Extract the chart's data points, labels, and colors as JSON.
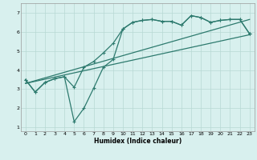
{
  "xlabel": "Humidex (Indice chaleur)",
  "line_color": "#2d7a6e",
  "bg_color": "#d8f0ee",
  "grid_color": "#b8d8d4",
  "xlim": [
    -0.5,
    23.5
  ],
  "ylim": [
    0.8,
    7.5
  ],
  "xticks": [
    0,
    1,
    2,
    3,
    4,
    5,
    6,
    7,
    8,
    9,
    10,
    11,
    12,
    13,
    14,
    15,
    16,
    17,
    18,
    19,
    20,
    21,
    22,
    23
  ],
  "yticks": [
    1,
    2,
    3,
    4,
    5,
    6,
    7
  ],
  "line1_x": [
    0,
    1,
    2,
    3,
    4,
    5,
    6,
    7,
    8,
    9,
    10,
    11,
    12,
    13,
    14,
    15,
    16,
    17,
    18,
    19,
    20,
    21,
    22,
    23
  ],
  "line1_y": [
    3.5,
    2.85,
    3.35,
    3.55,
    3.65,
    3.1,
    4.15,
    4.45,
    4.9,
    5.4,
    6.15,
    6.5,
    6.6,
    6.65,
    6.55,
    6.55,
    6.35,
    6.85,
    6.75,
    6.5,
    6.6,
    6.65,
    6.65,
    5.9
  ],
  "line2_x": [
    0,
    1,
    2,
    3,
    4,
    5,
    6,
    7,
    8,
    9,
    10,
    11,
    12,
    13,
    14,
    15,
    16,
    17,
    18,
    19,
    20,
    21,
    22,
    23
  ],
  "line2_y": [
    3.5,
    2.85,
    3.35,
    3.55,
    3.65,
    1.3,
    2.0,
    3.05,
    4.15,
    4.55,
    6.15,
    6.5,
    6.6,
    6.65,
    6.55,
    6.55,
    6.35,
    6.85,
    6.75,
    6.5,
    6.6,
    6.65,
    6.65,
    5.9
  ],
  "line3_x": [
    0,
    23
  ],
  "line3_y": [
    3.3,
    5.85
  ],
  "line4_x": [
    0,
    23
  ],
  "line4_y": [
    3.3,
    6.65
  ]
}
